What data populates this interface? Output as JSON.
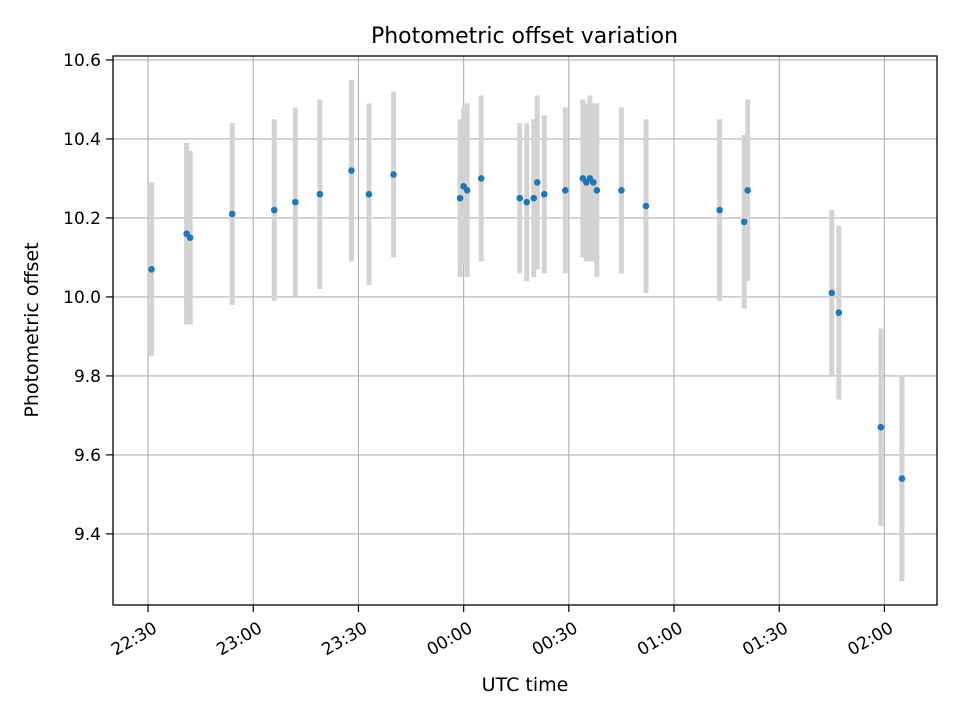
{
  "chart_data": {
    "type": "scatter",
    "title": "Photometric offset variation",
    "xlabel": "UTC time",
    "ylabel": "Photometric offset",
    "x_ticks": [
      "22:30",
      "23:00",
      "23:30",
      "00:00",
      "00:30",
      "01:00",
      "01:30",
      "02:00"
    ],
    "y_ticks": [
      "9.4",
      "9.6",
      "9.8",
      "10.0",
      "10.2",
      "10.4",
      "10.6"
    ],
    "ylim": [
      9.22,
      10.61
    ],
    "xlim_minutes_from_2230": [
      -10,
      225
    ],
    "grid": true,
    "errorbars": true,
    "point_color": "#1f77b4",
    "errorbar_color": "#d3d3d3",
    "points": [
      {
        "x": "22:31",
        "y": 10.07,
        "err": 0.22
      },
      {
        "x": "22:41",
        "y": 10.16,
        "err": 0.23
      },
      {
        "x": "22:42",
        "y": 10.15,
        "err": 0.22
      },
      {
        "x": "22:54",
        "y": 10.21,
        "err": 0.23
      },
      {
        "x": "23:06",
        "y": 10.22,
        "err": 0.23
      },
      {
        "x": "23:12",
        "y": 10.24,
        "err": 0.24
      },
      {
        "x": "23:19",
        "y": 10.26,
        "err": 0.24
      },
      {
        "x": "23:28",
        "y": 10.32,
        "err": 0.23
      },
      {
        "x": "23:33",
        "y": 10.26,
        "err": 0.23
      },
      {
        "x": "23:40",
        "y": 10.31,
        "err": 0.21
      },
      {
        "x": "23:59",
        "y": 10.25,
        "err": 0.2
      },
      {
        "x": "00:00",
        "y": 10.28,
        "err": 0.2
      },
      {
        "x": "00:01",
        "y": 10.27,
        "err": 0.22
      },
      {
        "x": "00:05",
        "y": 10.3,
        "err": 0.21
      },
      {
        "x": "00:16",
        "y": 10.25,
        "err": 0.19
      },
      {
        "x": "00:18",
        "y": 10.24,
        "err": 0.2
      },
      {
        "x": "00:20",
        "y": 10.25,
        "err": 0.2
      },
      {
        "x": "00:21",
        "y": 10.29,
        "err": 0.22
      },
      {
        "x": "00:23",
        "y": 10.26,
        "err": 0.2
      },
      {
        "x": "00:29",
        "y": 10.27,
        "err": 0.21
      },
      {
        "x": "00:34",
        "y": 10.3,
        "err": 0.2
      },
      {
        "x": "00:35",
        "y": 10.29,
        "err": 0.2
      },
      {
        "x": "00:36",
        "y": 10.3,
        "err": 0.21
      },
      {
        "x": "00:37",
        "y": 10.29,
        "err": 0.2
      },
      {
        "x": "00:38",
        "y": 10.27,
        "err": 0.22
      },
      {
        "x": "00:45",
        "y": 10.27,
        "err": 0.21
      },
      {
        "x": "00:52",
        "y": 10.23,
        "err": 0.22
      },
      {
        "x": "01:13",
        "y": 10.22,
        "err": 0.23
      },
      {
        "x": "01:20",
        "y": 10.19,
        "err": 0.22
      },
      {
        "x": "01:21",
        "y": 10.27,
        "err": 0.23
      },
      {
        "x": "01:45",
        "y": 10.01,
        "err": 0.21
      },
      {
        "x": "01:47",
        "y": 9.96,
        "err": 0.22
      },
      {
        "x": "01:59",
        "y": 9.67,
        "err": 0.25
      },
      {
        "x": "02:05",
        "y": 9.54,
        "err": 0.26
      }
    ]
  }
}
